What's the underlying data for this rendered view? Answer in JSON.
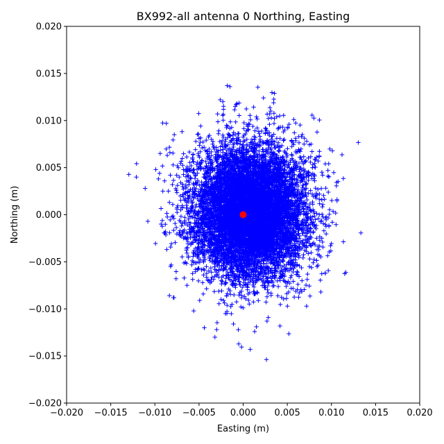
{
  "chart_data": {
    "type": "scatter",
    "title": "BX992-all antenna 0 Northing, Easting",
    "xlabel": "Easting (m)",
    "ylabel": "Northing (m)",
    "xlim": [
      -0.02,
      0.02
    ],
    "ylim": [
      -0.02,
      0.02
    ],
    "xticks": [
      "−0.020",
      "−0.015",
      "−0.010",
      "−0.005",
      "0.000",
      "0.005",
      "0.010",
      "0.015",
      "0.020"
    ],
    "yticks": [
      "−0.020",
      "−0.015",
      "−0.010",
      "−0.005",
      "0.000",
      "0.005",
      "0.010",
      "0.015",
      "0.020"
    ],
    "grid": false,
    "series": [
      {
        "marker": "+",
        "color": "#0000ff",
        "cluster": {
          "center": [
            0.0007,
            0.0003
          ],
          "std_x": 0.0032,
          "std_y": 0.0035
        },
        "x": [
          -0.0121,
          -0.0111,
          -0.0108,
          -0.0099,
          -0.0096,
          -0.0094,
          -0.0091,
          -0.0087,
          -0.0086,
          -0.0083,
          -0.0079,
          -0.0078,
          -0.0076,
          -0.0032,
          -0.003,
          -0.0026,
          -0.0023,
          -0.002,
          -0.0018,
          -0.0015,
          -0.0011,
          -0.0009,
          -0.0008,
          -0.0007,
          0.0008,
          0.0013,
          0.0015,
          0.0023,
          0.0027,
          0.003,
          0.0038,
          0.0042,
          0.0047,
          0.0052,
          0.0058,
          0.0063,
          0.0069,
          0.0072,
          0.0078,
          0.0083,
          0.0085,
          0.0088,
          0.009,
          0.0093,
          0.0096,
          0.0099,
          0.0101
        ],
        "y": [
          0.004,
          0.0028,
          -0.0007,
          0.0048,
          0.0038,
          0.0065,
          0.0025,
          0.0097,
          0.0063,
          0.0066,
          -0.0088,
          0.0085,
          -0.0068,
          -0.013,
          -0.0122,
          0.0122,
          0.012,
          -0.0105,
          0.0137,
          0.0136,
          -0.0116,
          0.0115,
          0.0117,
          0.0118,
          -0.0143,
          -0.0124,
          -0.0119,
          0.0124,
          -0.0113,
          0.0107,
          0.0104,
          0.0093,
          0.009,
          0.0096,
          0.0087,
          0.0083,
          0.0075,
          0.0078,
          0.0067,
          0.0061,
          0.0057,
          -0.0082,
          0.0042,
          -0.0062,
          0.0047,
          -0.0033,
          -0.0008
        ]
      },
      {
        "marker": "o",
        "color": "#ff0000",
        "x": [
          0.0
        ],
        "y": [
          0.0
        ]
      }
    ]
  }
}
